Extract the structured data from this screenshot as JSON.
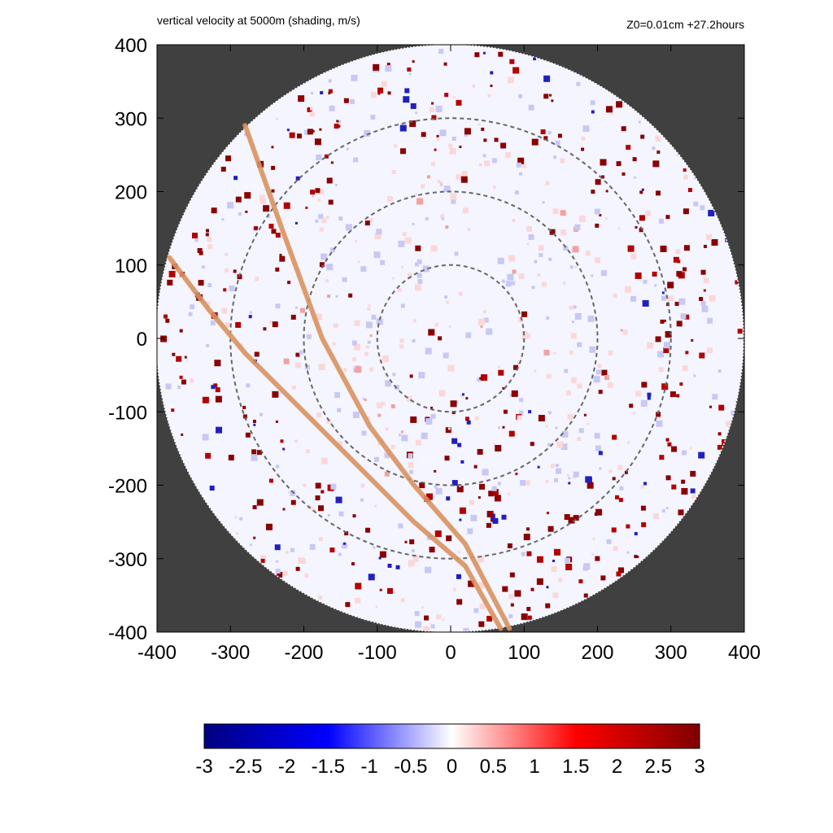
{
  "chart_data": {
    "type": "heatmap",
    "title": "vertical velocity at 5000m (shading, m/s)",
    "subtitle": "Z0=0.01cm  +27.2hours",
    "xlim": [
      -400,
      400
    ],
    "ylim": [
      -400,
      400
    ],
    "x_ticks": [
      "-400",
      "-300",
      "-200",
      "-100",
      "0",
      "100",
      "200",
      "300",
      "400"
    ],
    "y_ticks": [
      "400",
      "300",
      "200",
      "100",
      "0",
      "-100",
      "-200",
      "-300",
      "-400"
    ],
    "domain_radius": 400,
    "range_rings": [
      100,
      200,
      300
    ],
    "colorbar": {
      "range": [
        -3,
        3
      ],
      "ticks": [
        "-3",
        "-2.5",
        "-2",
        "-1.5",
        "-1",
        "-0.5",
        "0",
        "0.5",
        "1",
        "1.5",
        "2",
        "2.5",
        "3"
      ],
      "colors": [
        "#000080",
        "#0000ff",
        "#ffffff",
        "#ff0000",
        "#800000"
      ]
    },
    "tracks": [
      {
        "points": [
          [
            -280,
            290
          ],
          [
            -230,
            150
          ],
          [
            -175,
            0
          ],
          [
            -110,
            -120
          ],
          [
            -50,
            -200
          ],
          [
            20,
            -280
          ],
          [
            80,
            -395
          ]
        ]
      },
      {
        "points": [
          [
            -383,
            110
          ],
          [
            -330,
            40
          ],
          [
            -280,
            -20
          ],
          [
            -200,
            -100
          ],
          [
            -120,
            -180
          ],
          [
            -50,
            -250
          ],
          [
            20,
            -310
          ],
          [
            68,
            -395
          ]
        ]
      }
    ],
    "colors": {
      "background": "#404040",
      "track": "#d9925f",
      "ring": "#666666"
    }
  }
}
